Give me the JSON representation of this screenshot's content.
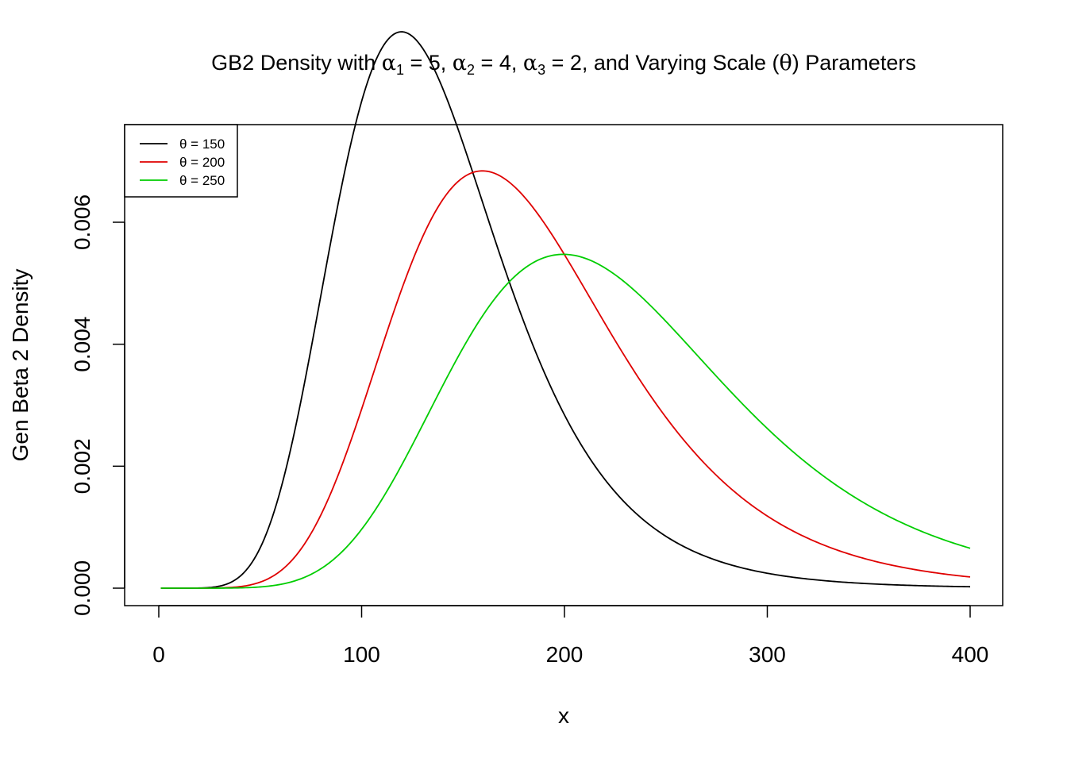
{
  "chart_data": {
    "type": "line",
    "title": {
      "text": "GB2 Density with α1 = 5, α2 = 4, α3 = 2, and Varying Scale (θ) Parameters",
      "prefix": "GB2 Density with ",
      "alpha_symbol": "α",
      "alpha1_sub": "1",
      "alpha1_eq": " = 5, ",
      "alpha2_sub": "2",
      "alpha2_eq": " = 4, ",
      "alpha3_sub": "3",
      "alpha3_eq": " = 2, and Varying Scale (",
      "theta_symbol": "θ",
      "suffix": ") Parameters"
    },
    "xlabel": "x",
    "ylabel": "Gen Beta 2 Density",
    "xlim": [
      0,
      400
    ],
    "ylim": [
      0,
      0.0075
    ],
    "x_ticks": [
      0,
      100,
      200,
      300,
      400
    ],
    "x_tick_labels": [
      "0",
      "100",
      "200",
      "300",
      "400"
    ],
    "y_ticks": [
      0,
      0.002,
      0.004,
      0.006
    ],
    "y_tick_labels": [
      "0.000",
      "0.002",
      "0.004",
      "0.006"
    ],
    "grid": false,
    "legend_position": "top-left",
    "parameters": {
      "alpha1": 5,
      "alpha2": 4,
      "alpha3": 2
    },
    "series": [
      {
        "name": "θ = 150",
        "theta": 150,
        "color": "#000000"
      },
      {
        "name": "θ = 200",
        "theta": 200,
        "color": "#DF0000"
      },
      {
        "name": "θ = 250",
        "theta": 250,
        "color": "#00CD00"
      }
    ],
    "x_range": [
      1,
      400
    ]
  }
}
